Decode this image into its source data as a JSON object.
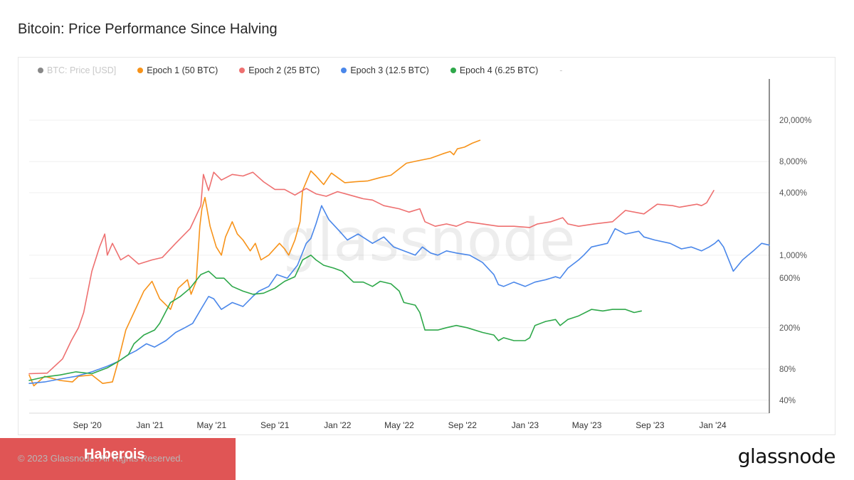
{
  "title": "Bitcoin: Price Performance Since Halving",
  "legend": {
    "items": [
      {
        "label": "BTC: Price [USD]",
        "color": "#888888",
        "dimmed": true
      },
      {
        "label": "Epoch 1 (50 BTC)",
        "color": "#f7931a",
        "dimmed": false
      },
      {
        "label": "Epoch 2 (25 BTC)",
        "color": "#ee7070",
        "dimmed": false
      },
      {
        "label": "Epoch 3 (12.5 BTC)",
        "color": "#4a87ea",
        "dimmed": false
      },
      {
        "label": "Epoch 4 (6.25 BTC)",
        "color": "#2ea84a",
        "dimmed": false
      }
    ],
    "extra": "-"
  },
  "watermark": "glassnode",
  "footer": {
    "copyright": "© 2023 Glassnode. All Rights Reserved.",
    "badge": "Haberois",
    "logo": "glassnode"
  },
  "chart_data": {
    "type": "line",
    "title": "Bitcoin: Price Performance Since Halving",
    "xlabel": "",
    "ylabel": "",
    "y_scale": "log",
    "ylim": [
      30,
      50000
    ],
    "x_range": [
      "2020-05-11",
      "2024-04-20"
    ],
    "x_ticks": [
      {
        "date": "2020-09-01",
        "label": "Sep '20"
      },
      {
        "date": "2021-01-01",
        "label": "Jan '21"
      },
      {
        "date": "2021-05-01",
        "label": "May '21"
      },
      {
        "date": "2021-09-01",
        "label": "Sep '21"
      },
      {
        "date": "2022-01-01",
        "label": "Jan '22"
      },
      {
        "date": "2022-05-01",
        "label": "May '22"
      },
      {
        "date": "2022-09-01",
        "label": "Sep '22"
      },
      {
        "date": "2023-01-01",
        "label": "Jan '23"
      },
      {
        "date": "2023-05-01",
        "label": "May '23"
      },
      {
        "date": "2023-09-01",
        "label": "Sep '23"
      },
      {
        "date": "2024-01-01",
        "label": "Jan '24"
      }
    ],
    "y_ticks": [
      {
        "value": 40,
        "label": "40%"
      },
      {
        "value": 80,
        "label": "80%"
      },
      {
        "value": 200,
        "label": "200%"
      },
      {
        "value": 600,
        "label": "600%"
      },
      {
        "value": 1000,
        "label": "1,000%"
      },
      {
        "value": 4000,
        "label": "4,000%"
      },
      {
        "value": 8000,
        "label": "8,000%"
      },
      {
        "value": 20000,
        "label": "20,000%"
      }
    ],
    "grid": true,
    "legend_position": "top-left",
    "series": [
      {
        "name": "Epoch 1 (50 BTC)",
        "color": "#f7931a",
        "x": [
          "2020-05-11",
          "2020-05-20",
          "2020-06-10",
          "2020-07-10",
          "2020-08-03",
          "2020-08-15",
          "2020-09-10",
          "2020-10-01",
          "2020-10-20",
          "2020-10-30",
          "2020-11-15",
          "2020-12-05",
          "2020-12-20",
          "2021-01-05",
          "2021-01-20",
          "2021-02-10",
          "2021-02-25",
          "2021-03-15",
          "2021-03-22",
          "2021-04-01",
          "2021-04-08",
          "2021-04-12",
          "2021-04-18",
          "2021-04-28",
          "2021-05-10",
          "2021-05-20",
          "2021-05-28",
          "2021-06-10",
          "2021-06-20",
          "2021-07-01",
          "2021-07-15",
          "2021-07-25",
          "2021-08-05",
          "2021-08-20",
          "2021-09-10",
          "2021-09-20",
          "2021-09-28",
          "2021-10-10",
          "2021-10-20",
          "2021-10-25",
          "2021-11-10",
          "2021-11-20",
          "2021-12-05",
          "2021-12-20",
          "2022-01-15",
          "2022-02-05",
          "2022-03-01",
          "2022-03-25",
          "2022-04-15",
          "2022-05-01",
          "2022-05-15",
          "2022-06-10",
          "2022-07-01",
          "2022-07-25",
          "2022-08-08",
          "2022-08-15",
          "2022-08-22",
          "2022-09-05",
          "2022-09-20",
          "2022-10-05"
        ],
        "values": [
          70,
          55,
          68,
          62,
          60,
          68,
          70,
          58,
          60,
          90,
          190,
          310,
          450,
          560,
          380,
          300,
          480,
          580,
          420,
          560,
          1900,
          2800,
          3600,
          1900,
          1200,
          1000,
          1500,
          2100,
          1600,
          1400,
          1100,
          1300,
          900,
          1000,
          1300,
          1150,
          1000,
          1400,
          2100,
          4200,
          6500,
          5800,
          4800,
          6200,
          5000,
          5100,
          5200,
          5600,
          5900,
          6800,
          7700,
          8200,
          8600,
          9500,
          10000,
          9300,
          10600,
          11000,
          12000,
          12800
        ]
      },
      {
        "name": "Epoch 2 (25 BTC)",
        "color": "#ee7070",
        "x": [
          "2020-05-11",
          "2020-06-15",
          "2020-07-15",
          "2020-08-01",
          "2020-08-15",
          "2020-08-25",
          "2020-09-10",
          "2020-09-25",
          "2020-10-05",
          "2020-10-10",
          "2020-10-20",
          "2020-11-05",
          "2020-11-20",
          "2020-12-10",
          "2021-01-05",
          "2021-01-25",
          "2021-02-20",
          "2021-03-20",
          "2021-04-10",
          "2021-04-15",
          "2021-04-25",
          "2021-05-05",
          "2021-05-20",
          "2021-06-10",
          "2021-07-01",
          "2021-07-20",
          "2021-08-10",
          "2021-09-01",
          "2021-09-20",
          "2021-10-10",
          "2021-11-01",
          "2021-11-20",
          "2021-12-10",
          "2022-01-01",
          "2022-01-25",
          "2022-02-20",
          "2022-03-10",
          "2022-04-01",
          "2022-05-01",
          "2022-05-20",
          "2022-06-10",
          "2022-06-20",
          "2022-07-10",
          "2022-08-01",
          "2022-08-20",
          "2022-09-10",
          "2022-10-10",
          "2022-11-10",
          "2022-12-10",
          "2023-01-10",
          "2023-01-25",
          "2023-02-20",
          "2023-03-15",
          "2023-03-25",
          "2023-04-15",
          "2023-05-15",
          "2023-06-20",
          "2023-07-15",
          "2023-08-20",
          "2023-09-15",
          "2023-10-15",
          "2023-10-28",
          "2023-11-15",
          "2023-12-01",
          "2023-12-10",
          "2023-12-20",
          "2024-01-03"
        ],
        "values": [
          72,
          73,
          100,
          150,
          200,
          280,
          700,
          1200,
          1600,
          1000,
          1300,
          900,
          1000,
          820,
          900,
          950,
          1300,
          1800,
          3000,
          6000,
          4200,
          6300,
          5300,
          6000,
          5800,
          6300,
          5100,
          4300,
          4300,
          3800,
          4400,
          3900,
          3700,
          4100,
          3800,
          3500,
          3400,
          3000,
          2800,
          2600,
          2800,
          2100,
          1900,
          2000,
          1900,
          2100,
          2000,
          1900,
          1900,
          1850,
          2000,
          2100,
          2300,
          2000,
          1900,
          2000,
          2100,
          2700,
          2500,
          3100,
          3000,
          2900,
          3000,
          3100,
          3000,
          3200,
          4200
        ]
      },
      {
        "name": "Epoch 3 (12.5 BTC)",
        "color": "#4a87ea",
        "x": [
          "2020-05-11",
          "2020-06-10",
          "2020-07-10",
          "2020-08-10",
          "2020-09-10",
          "2020-10-10",
          "2020-11-01",
          "2020-11-20",
          "2020-12-05",
          "2020-12-25",
          "2021-01-10",
          "2021-02-01",
          "2021-02-20",
          "2021-03-10",
          "2021-03-25",
          "2021-04-10",
          "2021-04-25",
          "2021-05-05",
          "2021-05-20",
          "2021-06-10",
          "2021-07-01",
          "2021-07-20",
          "2021-08-01",
          "2021-08-20",
          "2021-09-05",
          "2021-09-25",
          "2021-10-15",
          "2021-11-01",
          "2021-11-10",
          "2021-11-20",
          "2021-12-01",
          "2021-12-15",
          "2022-01-05",
          "2022-01-20",
          "2022-02-10",
          "2022-03-10",
          "2022-04-01",
          "2022-04-20",
          "2022-05-10",
          "2022-06-01",
          "2022-06-15",
          "2022-07-01",
          "2022-07-15",
          "2022-08-01",
          "2022-08-20",
          "2022-09-15",
          "2022-10-10",
          "2022-11-01",
          "2022-11-10",
          "2022-11-20",
          "2022-12-10",
          "2023-01-01",
          "2023-01-20",
          "2023-02-10",
          "2023-03-01",
          "2023-03-10",
          "2023-03-25",
          "2023-04-15",
          "2023-04-25",
          "2023-05-10",
          "2023-06-10",
          "2023-06-25",
          "2023-07-15",
          "2023-08-10",
          "2023-08-20",
          "2023-09-10",
          "2023-10-10",
          "2023-11-01",
          "2023-11-20",
          "2023-12-10",
          "2023-12-25",
          "2024-01-05",
          "2024-01-12",
          "2024-01-22",
          "2024-02-10",
          "2024-02-28",
          "2024-03-10",
          "2024-03-20",
          "2024-04-05",
          "2024-04-20"
        ],
        "values": [
          58,
          60,
          64,
          68,
          75,
          85,
          95,
          110,
          120,
          140,
          130,
          150,
          180,
          200,
          220,
          300,
          400,
          380,
          300,
          350,
          320,
          400,
          450,
          500,
          650,
          600,
          800,
          1300,
          1450,
          2000,
          3000,
          2200,
          1700,
          1400,
          1600,
          1300,
          1500,
          1200,
          1100,
          1000,
          1200,
          1050,
          1000,
          1100,
          1050,
          1000,
          850,
          650,
          520,
          500,
          550,
          500,
          550,
          580,
          620,
          600,
          750,
          900,
          1000,
          1200,
          1300,
          1800,
          1600,
          1700,
          1500,
          1400,
          1300,
          1150,
          1200,
          1100,
          1200,
          1300,
          1400,
          1200,
          700,
          900,
          1000,
          1100,
          1300,
          1250
        ]
      },
      {
        "name": "Epoch 4 (6.25 BTC)",
        "color": "#2ea84a",
        "x": [
          "2020-05-11",
          "2020-06-10",
          "2020-07-10",
          "2020-08-10",
          "2020-09-10",
          "2020-10-10",
          "2020-11-01",
          "2020-11-20",
          "2020-12-01",
          "2020-12-20",
          "2021-01-10",
          "2021-01-20",
          "2021-02-10",
          "2021-03-01",
          "2021-03-20",
          "2021-04-10",
          "2021-04-25",
          "2021-05-10",
          "2021-05-25",
          "2021-06-10",
          "2021-07-01",
          "2021-07-20",
          "2021-08-10",
          "2021-09-01",
          "2021-09-20",
          "2021-10-10",
          "2021-10-25",
          "2021-11-10",
          "2021-11-20",
          "2021-12-05",
          "2021-12-25",
          "2022-01-10",
          "2022-02-01",
          "2022-02-20",
          "2022-03-10",
          "2022-03-25",
          "2022-04-15",
          "2022-05-01",
          "2022-05-10",
          "2022-06-01",
          "2022-06-10",
          "2022-06-20",
          "2022-07-15",
          "2022-08-01",
          "2022-08-20",
          "2022-09-10",
          "2022-10-10",
          "2022-11-01",
          "2022-11-10",
          "2022-11-20",
          "2022-12-10",
          "2023-01-01",
          "2023-01-10",
          "2023-01-20",
          "2023-02-10",
          "2023-03-01",
          "2023-03-10",
          "2023-03-25",
          "2023-04-15",
          "2023-05-10",
          "2023-06-01",
          "2023-06-20",
          "2023-07-15",
          "2023-08-01",
          "2023-08-15"
        ],
        "values": [
          62,
          67,
          70,
          75,
          72,
          82,
          95,
          110,
          140,
          170,
          190,
          220,
          350,
          400,
          480,
          650,
          700,
          600,
          600,
          500,
          450,
          420,
          430,
          480,
          560,
          620,
          900,
          1000,
          900,
          800,
          750,
          700,
          550,
          550,
          500,
          560,
          530,
          450,
          350,
          330,
          280,
          190,
          190,
          200,
          210,
          200,
          180,
          170,
          150,
          160,
          150,
          150,
          160,
          210,
          230,
          240,
          210,
          240,
          260,
          300,
          290,
          300,
          300,
          280,
          290
        ]
      }
    ]
  }
}
